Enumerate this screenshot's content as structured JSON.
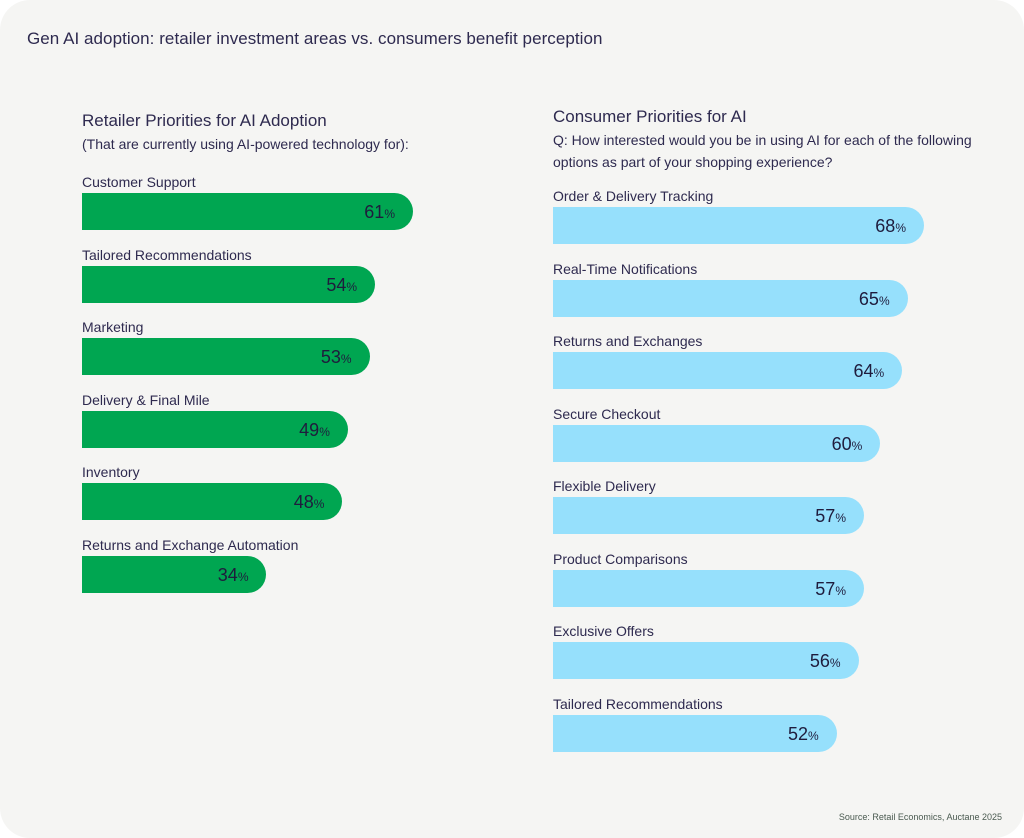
{
  "title": "Gen AI adoption: retailer investment areas vs. consumers benefit perception",
  "source": "Source: Retail Economics, Auctane 2025",
  "colors": {
    "retailer_bar": "#00a651",
    "consumer_bar": "#96e0fc",
    "text": "#2e2a4f",
    "background": "#f5f5f3"
  },
  "chart_data": [
    {
      "type": "bar",
      "orientation": "horizontal",
      "title": "Retailer Priorities for AI Adoption",
      "subtitle": "(That are currently using AI-powered technology for):",
      "categories": [
        "Customer Support",
        "Tailored Recommendations",
        "Marketing",
        "Delivery & Final Mile",
        "Inventory",
        "Returns and Exchange Automation"
      ],
      "values": [
        61,
        54,
        53,
        49,
        48,
        34
      ],
      "unit": "%",
      "xlim": [
        0,
        100
      ],
      "color": "#00a651",
      "grid": false,
      "legend": "none"
    },
    {
      "type": "bar",
      "orientation": "horizontal",
      "title": "Consumer Priorities for AI",
      "subtitle": "Q: How interested would you be in using AI for each of the following options as part of your shopping experience?",
      "categories": [
        "Order & Delivery Tracking",
        "Real-Time Notifications",
        "Returns and Exchanges",
        "Secure Checkout",
        "Flexible Delivery",
        "Product Comparisons",
        "Exclusive Offers",
        "Tailored Recommendations"
      ],
      "values": [
        68,
        65,
        64,
        60,
        57,
        57,
        56,
        52
      ],
      "unit": "%",
      "xlim": [
        0,
        100
      ],
      "color": "#96e0fc",
      "grid": false,
      "legend": "none"
    }
  ]
}
